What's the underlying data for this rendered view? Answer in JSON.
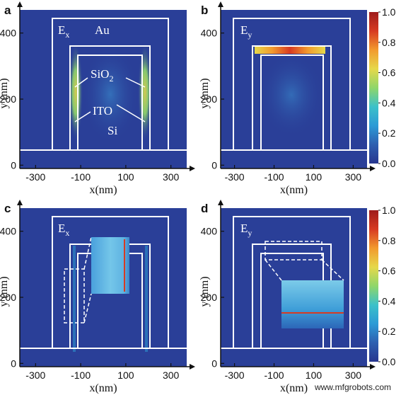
{
  "colors": {
    "background": "#2a3f98",
    "outline": "#ffffff",
    "axis": "#111111"
  },
  "colormap": [
    "#27368f",
    "#2d5fb0",
    "#2c9ad6",
    "#3cc1c9",
    "#8fd66a",
    "#e6d84a",
    "#f29a2e",
    "#d73a22",
    "#9e1b1b"
  ],
  "chart_data": [
    {
      "type": "heatmap",
      "panel": "a",
      "field": "E",
      "field_sub": "x",
      "xlabel": "x(nm)",
      "ylabel": "y (nm)",
      "xticks": [
        "-300",
        "-100",
        "100",
        "300"
      ],
      "xtick_values": [
        -300,
        -100,
        100,
        300
      ],
      "yticks": [
        "0",
        "200",
        "400"
      ],
      "ytick_values": [
        0,
        200,
        400
      ],
      "xlim": [
        -370,
        370
      ],
      "ylim": [
        -10,
        470
      ],
      "annotations": [
        "Au",
        "SiO2",
        "ITO",
        "Si"
      ],
      "hotspots": [
        {
          "region": "left ITO sidewall",
          "level": 0.75
        },
        {
          "region": "right ITO sidewall",
          "level": 0.75
        }
      ]
    },
    {
      "type": "heatmap",
      "panel": "b",
      "field": "E",
      "field_sub": "y",
      "xlabel": "x(nm)",
      "ylabel": "y (nm)",
      "xticks": [
        "-300",
        "-100",
        "100",
        "300"
      ],
      "xtick_values": [
        -300,
        -100,
        100,
        300
      ],
      "yticks": [
        "0",
        "200",
        "400"
      ],
      "ytick_values": [
        0,
        200,
        400
      ],
      "xlim": [
        -370,
        370
      ],
      "ylim": [
        -10,
        470
      ],
      "hotspots": [
        {
          "region": "top ITO layer",
          "level": 0.95
        }
      ]
    },
    {
      "type": "heatmap",
      "panel": "c",
      "field": "E",
      "field_sub": "x",
      "xlabel": "x(nm)",
      "ylabel": "y (nm)",
      "xticks": [
        "-300",
        "-100",
        "100",
        "300"
      ],
      "xtick_values": [
        -300,
        -100,
        100,
        300
      ],
      "yticks": [
        "0",
        "200",
        "400"
      ],
      "ytick_values": [
        0,
        200,
        400
      ],
      "xlim": [
        -370,
        370
      ],
      "ylim": [
        -10,
        470
      ],
      "hotspots": [
        {
          "region": "thin ITO sidewall (zoom inset)",
          "level": 1.0
        }
      ]
    },
    {
      "type": "heatmap",
      "panel": "d",
      "field": "E",
      "field_sub": "y",
      "xlabel": "x(nm)",
      "ylabel": "y (nm)",
      "xticks": [
        "-300",
        "-100",
        "100",
        "300"
      ],
      "xtick_values": [
        -300,
        -100,
        100,
        300
      ],
      "yticks": [
        "0",
        "200",
        "400"
      ],
      "ytick_values": [
        0,
        200,
        400
      ],
      "xlim": [
        -370,
        370
      ],
      "ylim": [
        -10,
        470
      ],
      "hotspots": [
        {
          "region": "thin top ITO layer (zoom inset)",
          "level": 1.0
        }
      ]
    }
  ],
  "colorbar": {
    "ticks": [
      "1.0",
      "0.8",
      "0.6",
      "0.4",
      "0.2",
      "0.0"
    ],
    "tick_values": [
      1.0,
      0.8,
      0.6,
      0.4,
      0.2,
      0.0
    ]
  },
  "watermark": "www.mfgrobots.com"
}
